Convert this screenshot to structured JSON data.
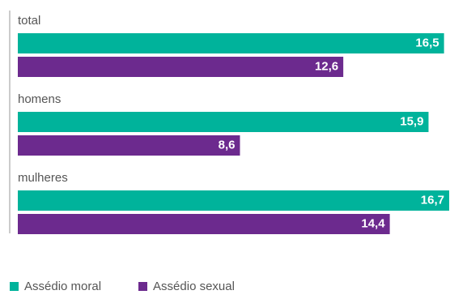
{
  "chart_data": {
    "type": "bar",
    "orientation": "horizontal",
    "title": "",
    "xlabel": "",
    "ylabel": "",
    "xlim": [
      0,
      16.7
    ],
    "grid": false,
    "legend_position": "bottom-left",
    "categories": [
      "total",
      "homens",
      "mulheres"
    ],
    "series": [
      {
        "name": "Assédio moral",
        "color": "#00b39b",
        "values": [
          16.5,
          15.9,
          16.7
        ],
        "labels": [
          "16,5",
          "15,9",
          "16,7"
        ]
      },
      {
        "name": "Assédio sexual",
        "color": "#6c2a8e",
        "values": [
          12.6,
          8.6,
          14.4
        ],
        "labels": [
          "12,6",
          "8,6",
          "14,4"
        ]
      }
    ]
  },
  "colors": {
    "axis": "#9a9a9a",
    "category_text": "#555555",
    "value_text": "#ffffff"
  }
}
